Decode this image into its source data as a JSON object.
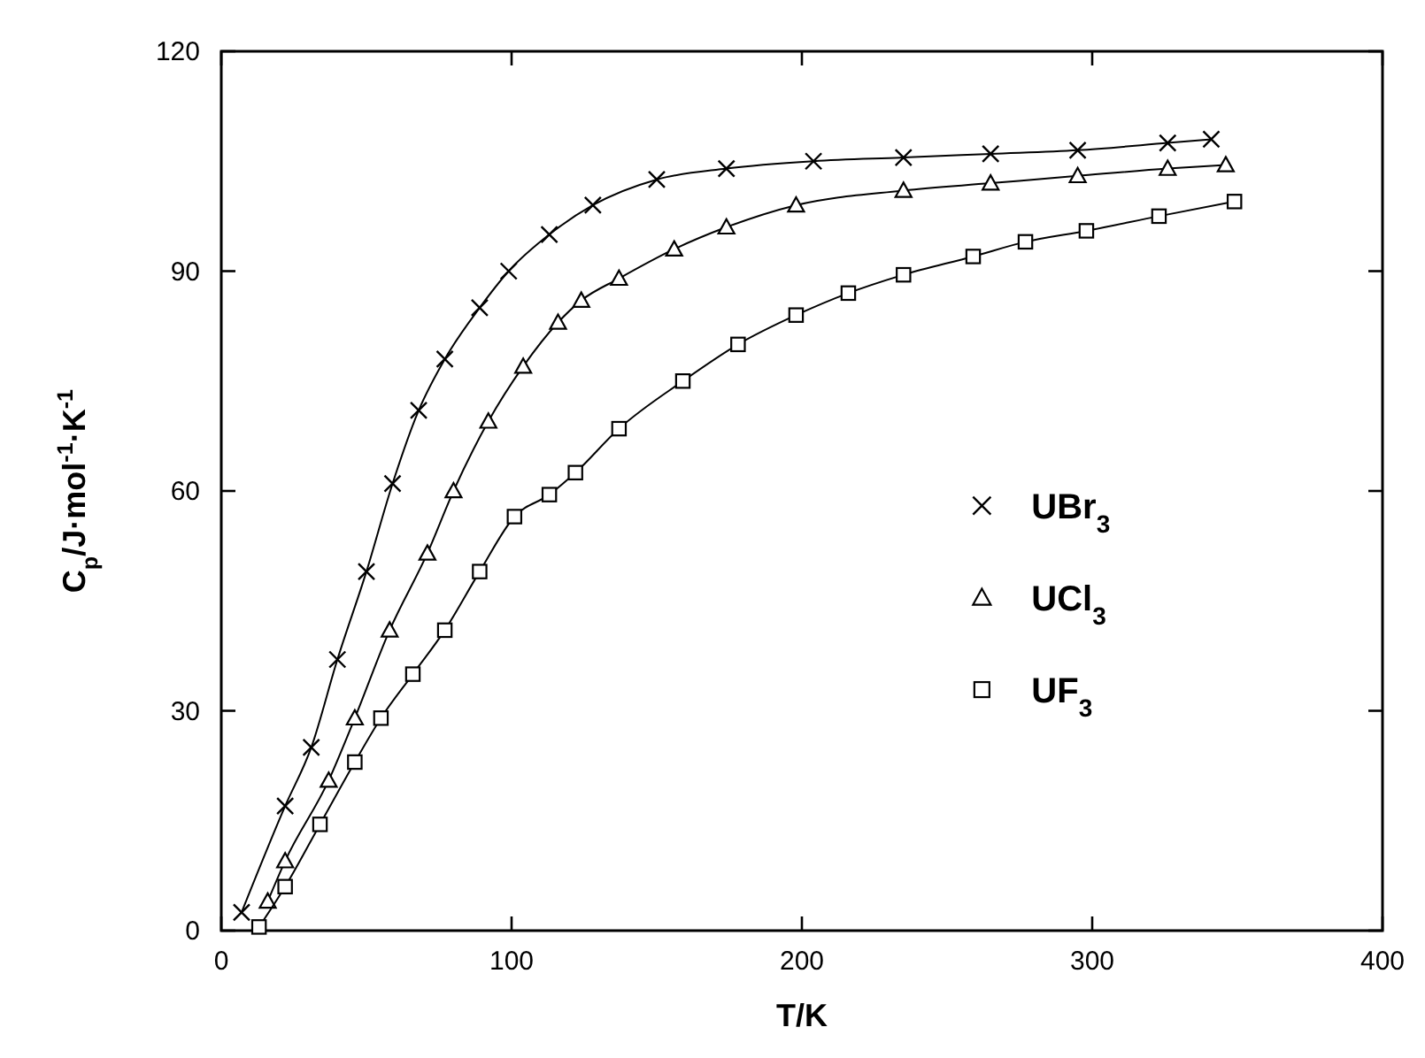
{
  "chart_data": {
    "type": "line",
    "xlabel": "T/K",
    "ylabel": "C$_{p}$/J·mol$^{-1}$·K$^{-1}$",
    "xlim": [
      0,
      400
    ],
    "ylim": [
      0,
      120
    ],
    "xticks": [
      0,
      100,
      200,
      300,
      400
    ],
    "yticks": [
      0,
      30,
      60,
      90,
      120
    ],
    "grid": false,
    "legend": "right",
    "line_style": "solid",
    "series": [
      {
        "name": "UBr$_{3}$",
        "color": "#000000",
        "marker": "cross",
        "x": [
          7,
          22,
          31,
          40,
          50,
          59,
          68,
          77,
          89,
          99,
          113,
          128,
          150,
          174,
          204,
          235,
          265,
          295,
          326,
          341
        ],
        "values": [
          2.5,
          17,
          25,
          37,
          49,
          61,
          71,
          78,
          85,
          90,
          95,
          99,
          102.5,
          104,
          105,
          105.5,
          106,
          106.5,
          107.5,
          108
        ]
      },
      {
        "name": "UCl$_{3}$",
        "color": "#000000",
        "marker": "triangle",
        "x": [
          16,
          22,
          37,
          46,
          58,
          71,
          80,
          92,
          104,
          116,
          124,
          137,
          156,
          174,
          198,
          235,
          265,
          295,
          326,
          346
        ],
        "values": [
          4,
          9.5,
          20.5,
          29,
          41,
          51.5,
          60,
          69.5,
          77,
          83,
          86,
          89,
          93,
          96,
          99,
          101,
          102,
          103,
          104,
          104.5
        ]
      },
      {
        "name": "UF$_{3}$",
        "color": "#000000",
        "marker": "square",
        "x": [
          13,
          22,
          34,
          46,
          55,
          66,
          77,
          89,
          101,
          113,
          122,
          137,
          159,
          178,
          198,
          216,
          235,
          259,
          277,
          298,
          323,
          349
        ],
        "values": [
          0.5,
          6,
          14.5,
          23,
          29,
          35,
          41,
          49,
          56.5,
          59.5,
          62.5,
          68.5,
          75,
          80,
          84,
          87,
          89.5,
          92,
          94,
          95.5,
          97.5,
          99.5
        ]
      }
    ]
  }
}
